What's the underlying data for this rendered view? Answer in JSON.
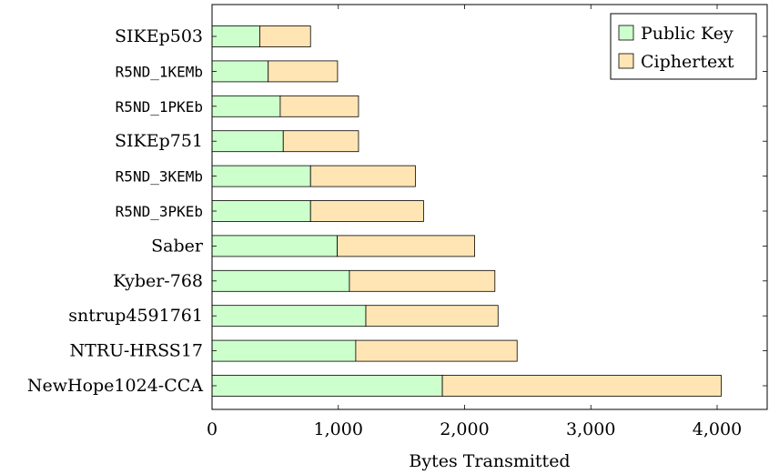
{
  "chart_data": {
    "type": "bar",
    "orientation": "horizontal",
    "stacked": true,
    "categories": [
      "SIKEp503",
      "R5ND_1KEMb",
      "R5ND_1PKEb",
      "SIKEp751",
      "R5ND_3KEMb",
      "R5ND_3PKEb",
      "Saber",
      "Kyber-768",
      "sntrup4591761",
      "NTRU-HRSS17",
      "NewHope1024-CCA"
    ],
    "monospace_categories": [
      "R5ND_1KEMb",
      "R5ND_1PKEb",
      "R5ND_3KEMb",
      "R5ND_3PKEb"
    ],
    "series": [
      {
        "name": "Public Key",
        "color": "#ccffcc",
        "values": [
          378,
          445,
          540,
          564,
          780,
          780,
          992,
          1088,
          1218,
          1138,
          1824
        ]
      },
      {
        "name": "Ciphertext",
        "color": "#ffe5b4",
        "values": [
          402,
          549,
          620,
          596,
          830,
          895,
          1088,
          1152,
          1047,
          1278,
          2208
        ]
      }
    ],
    "xlabel": "Bytes Transmitted",
    "ylabel": "",
    "title": "",
    "xlim": [
      0,
      4400
    ],
    "xticks": [
      0,
      1000,
      2000,
      3000,
      4000
    ],
    "xtick_labels": [
      "0",
      "1,000",
      "2,000",
      "3,000",
      "4,000"
    ],
    "grid": false,
    "legend_position": "top-right"
  }
}
